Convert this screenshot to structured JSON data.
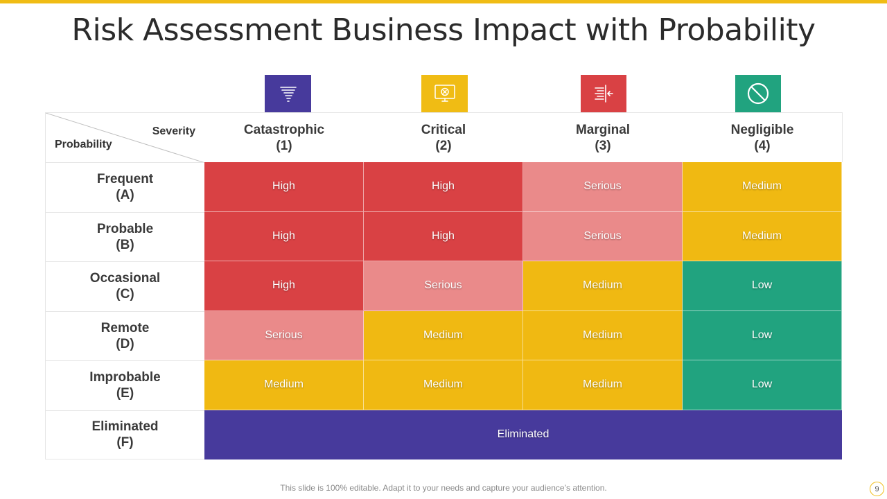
{
  "slide": {
    "title": "Risk Assessment Business Impact with Probability",
    "footer": "This slide is 100% editable. Adapt it to your needs and capture your audience’s attention.",
    "page_number": "9",
    "accent_color": "#f0bc14"
  },
  "matrix": {
    "severity_label": "Severity",
    "probability_label": "Probability",
    "columns": [
      {
        "name": "Catastrophic",
        "code": "(1)",
        "icon": "tornado-icon",
        "icon_color": "#473a9c"
      },
      {
        "name": "Critical",
        "code": "(2)",
        "icon": "monitor-error-icon",
        "icon_color": "#f0bc14"
      },
      {
        "name": "Marginal",
        "code": "(3)",
        "icon": "align-arrow-icon",
        "icon_color": "#d94144"
      },
      {
        "name": "Negligible",
        "code": "(4)",
        "icon": "prohibited-icon",
        "icon_color": "#21a37f"
      }
    ],
    "rows": [
      {
        "name": "Frequent",
        "code": "(A)",
        "cells": [
          "High",
          "High",
          "Serious",
          "Medium"
        ]
      },
      {
        "name": "Probable",
        "code": "(B)",
        "cells": [
          "High",
          "High",
          "Serious",
          "Medium"
        ]
      },
      {
        "name": "Occasional",
        "code": "(C)",
        "cells": [
          "High",
          "Serious",
          "Medium",
          "Low"
        ]
      },
      {
        "name": "Remote",
        "code": "(D)",
        "cells": [
          "Serious",
          "Medium",
          "Medium",
          "Low"
        ]
      },
      {
        "name": "Improbable",
        "code": "(E)",
        "cells": [
          "Medium",
          "Medium",
          "Medium",
          "Low"
        ]
      }
    ],
    "eliminated_row": {
      "name": "Eliminated",
      "code": "(F)",
      "label": "Eliminated"
    },
    "level_colors": {
      "High": "#d94144",
      "Serious": "#ea8a8a",
      "Medium": "#f0b912",
      "Low": "#21a37f",
      "Eliminated": "#473a9c"
    }
  }
}
